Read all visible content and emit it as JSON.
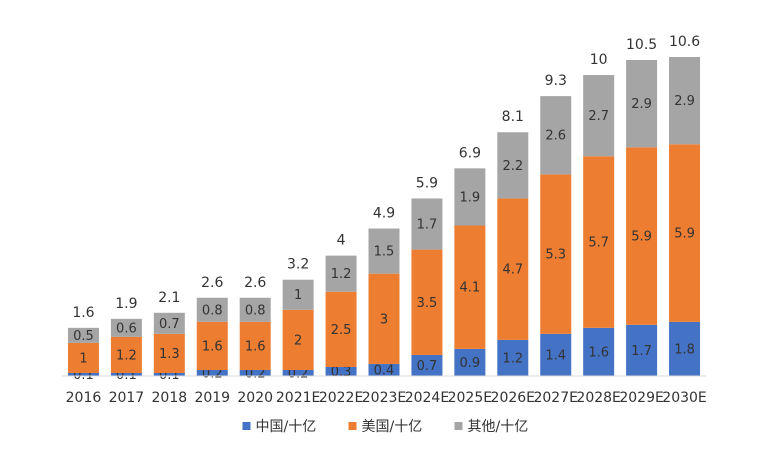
{
  "chart_data": {
    "type": "bar",
    "stacked": true,
    "categories": [
      "2016",
      "2017",
      "2018",
      "2019",
      "2020",
      "2021E",
      "2022E",
      "2023E",
      "2024E",
      "2025E",
      "2026E",
      "2027E",
      "2028E",
      "2029E",
      "2030E"
    ],
    "series": [
      {
        "name": "中国/十亿",
        "color": "#4472C4",
        "values": [
          0.1,
          0.1,
          0.1,
          0.2,
          0.2,
          0.2,
          0.3,
          0.4,
          0.7,
          0.9,
          1.2,
          1.4,
          1.6,
          1.7,
          1.8
        ]
      },
      {
        "name": "美国/十亿",
        "color": "#ED7D31",
        "values": [
          1,
          1.2,
          1.3,
          1.6,
          1.6,
          2,
          2.5,
          3,
          3.5,
          4.1,
          4.7,
          5.3,
          5.7,
          5.9,
          5.9
        ]
      },
      {
        "name": "其他/十亿",
        "color": "#A5A5A5",
        "values": [
          0.5,
          0.6,
          0.7,
          0.8,
          0.8,
          1,
          1.2,
          1.5,
          1.7,
          1.9,
          2.2,
          2.6,
          2.7,
          2.9,
          2.9
        ]
      }
    ],
    "totals": [
      1.6,
      1.9,
      2.1,
      2.6,
      2.6,
      3.2,
      4,
      4.9,
      5.9,
      6.9,
      8.1,
      9.3,
      10,
      10.5,
      10.6
    ],
    "title": "",
    "xlabel": "",
    "ylabel": "",
    "ylim": [
      0,
      10.6
    ],
    "grid": false,
    "legend_position": "bottom",
    "axis_line_color": "#D9D9D9"
  }
}
